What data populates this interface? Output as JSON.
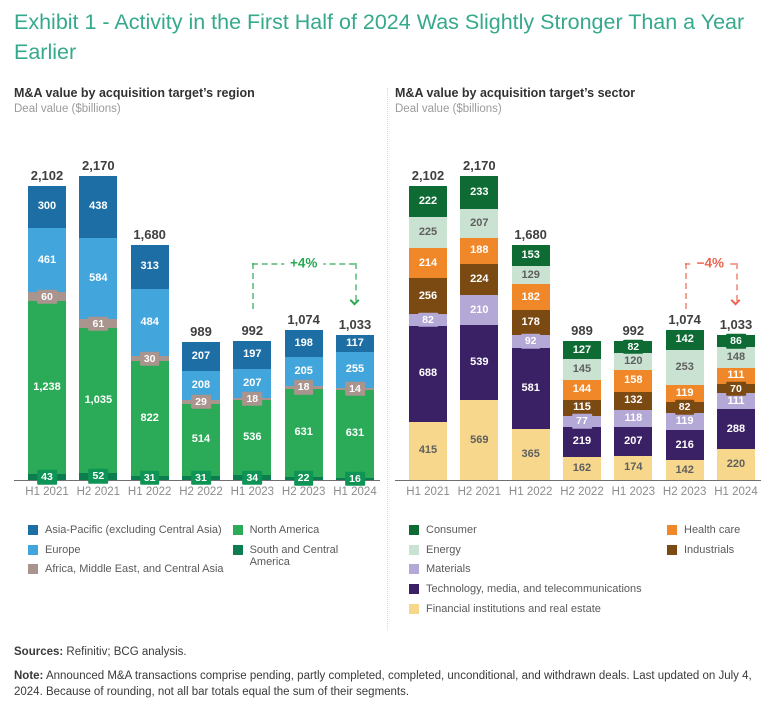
{
  "page": {
    "title": "Exhibit 1 - Activity in the First Half of 2024 Was Slightly Stronger Than a Year Earlier",
    "title_color": "#35a98c",
    "background": "#ffffff"
  },
  "footer": {
    "sources_label": "Sources:",
    "sources_text": "Refinitiv; BCG analysis.",
    "note_label": "Note:",
    "note_text": "Announced M&A transactions comprise pending, partly completed, completed, unconditional, and withdrawn deals. Last updated on July 4, 2024. Because of rounding, not all bar totals equal the sum of their segments."
  },
  "chart_data": [
    {
      "id": "region",
      "type": "stacked-bar",
      "title": "M&A value by acquisition target’s region",
      "subtitle": "Deal value ($billions)",
      "units": "$billions",
      "categories": [
        "H1 2021",
        "H2 2021",
        "H1 2022",
        "H2 2022",
        "H1 2023",
        "H2 2023",
        "H1 2024"
      ],
      "totals": [
        2102,
        2170,
        1680,
        989,
        992,
        1074,
        1033
      ],
      "stack_order_top_to_bottom": [
        "asia_pacific",
        "europe",
        "africa_me_ca",
        "north_america",
        "south_central_america"
      ],
      "series": [
        {
          "key": "asia_pacific",
          "name": "Asia-Pacific (excluding Central Asia)",
          "color": "#1c6ea4",
          "label_color": "#ffffff",
          "values": [
            300,
            438,
            313,
            207,
            197,
            198,
            117
          ]
        },
        {
          "key": "europe",
          "name": "Europe",
          "color": "#42a5dc",
          "label_color": "#ffffff",
          "values": [
            461,
            584,
            484,
            208,
            207,
            205,
            255
          ]
        },
        {
          "key": "africa_me_ca",
          "name": "Africa, Middle East, and Central Asia",
          "color": "#a9948e",
          "label_color": "#ffffff",
          "values": [
            60,
            61,
            30,
            29,
            18,
            18,
            14
          ]
        },
        {
          "key": "north_america",
          "name": "North America",
          "color": "#2bab57",
          "label_color": "#ffffff",
          "values": [
            1238,
            1035,
            822,
            514,
            536,
            631,
            631
          ]
        },
        {
          "key": "south_central_america",
          "name": "South and Central America",
          "color": "#0b7d4f",
          "label_color": "#ffffff",
          "values": [
            43,
            52,
            31,
            31,
            34,
            22,
            16
          ]
        }
      ],
      "badge_colors": {
        "south_central_america": "#0e9455"
      },
      "annotation": {
        "label": "+4%",
        "from_index": 4,
        "to_index": 6,
        "color": "#2aa853",
        "dash_color": "#2aa85399"
      },
      "legend_columns": [
        [
          "asia_pacific",
          "europe",
          "africa_me_ca"
        ],
        [
          "north_america",
          "south_central_america"
        ]
      ]
    },
    {
      "id": "sector",
      "type": "stacked-bar",
      "title": "M&A value by acquisition target’s sector",
      "subtitle": "Deal value ($billions)",
      "units": "$billions",
      "categories": [
        "H1 2021",
        "H2 2021",
        "H1 2022",
        "H2 2022",
        "H1 2023",
        "H2 2023",
        "H1 2024"
      ],
      "totals": [
        2102,
        2170,
        1680,
        989,
        992,
        1074,
        1033
      ],
      "stack_order_top_to_bottom": [
        "consumer",
        "energy",
        "health_care",
        "industrials",
        "materials",
        "tmt",
        "financial"
      ],
      "series": [
        {
          "key": "consumer",
          "name": "Consumer",
          "color": "#0e6b33",
          "label_color": "#ffffff",
          "values": [
            222,
            233,
            153,
            127,
            82,
            142,
            86
          ]
        },
        {
          "key": "energy",
          "name": "Energy",
          "color": "#c9e2d2",
          "label_color": "#5f5f5f",
          "values": [
            225,
            207,
            129,
            145,
            120,
            253,
            148
          ]
        },
        {
          "key": "health_care",
          "name": "Health care",
          "color": "#f0882a",
          "label_color": "#ffffff",
          "values": [
            214,
            188,
            182,
            144,
            158,
            119,
            111
          ]
        },
        {
          "key": "industrials",
          "name": "Industrials",
          "color": "#7b4a13",
          "label_color": "#ffffff",
          "values": [
            256,
            224,
            178,
            115,
            132,
            82,
            70
          ]
        },
        {
          "key": "materials",
          "name": "Materials",
          "color": "#b3a8d6",
          "label_color": "#ffffff",
          "values": [
            82,
            210,
            92,
            77,
            118,
            119,
            111
          ]
        },
        {
          "key": "tmt",
          "name": "Technology, media, and telecommunications",
          "color": "#3a2064",
          "label_color": "#ffffff",
          "values": [
            688,
            539,
            581,
            219,
            207,
            216,
            288
          ]
        },
        {
          "key": "financial",
          "name": "Financial institutions and real estate",
          "color": "#f6d78c",
          "label_color": "#5f5f5f",
          "values": [
            415,
            569,
            365,
            162,
            174,
            142,
            220
          ]
        }
      ],
      "badge_colors": {},
      "annotation": {
        "label": "−4%",
        "from_index": 5,
        "to_index": 6,
        "color": "#ee6450",
        "dash_color": "#ee645099"
      },
      "legend_columns": [
        [
          "consumer",
          "energy",
          "materials",
          "tmt",
          "financial"
        ],
        [
          "health_care",
          "industrials"
        ]
      ]
    }
  ]
}
